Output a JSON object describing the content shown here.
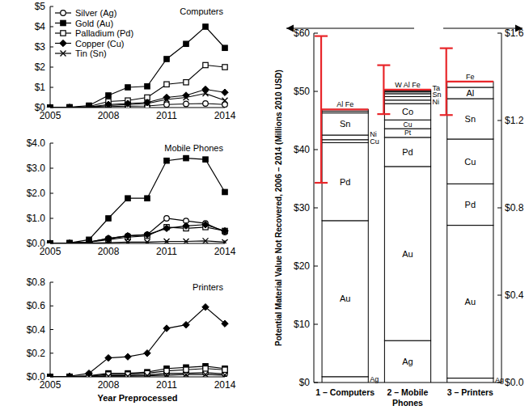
{
  "chart_data": [
    {
      "type": "line",
      "title": "Computers",
      "x": [
        2005,
        2006,
        2007,
        2008,
        2009,
        2010,
        2011,
        2012,
        2013,
        2014
      ],
      "xlim": [
        2005,
        2014
      ],
      "xticks": [
        2005,
        2008,
        2011,
        2014
      ],
      "ylim": [
        0,
        5
      ],
      "yticks": [
        {
          "value": 0,
          "label": "$0"
        },
        {
          "value": 1,
          "label": "$1"
        },
        {
          "value": 2,
          "label": "$2"
        },
        {
          "value": 3,
          "label": "$3"
        },
        {
          "value": 4,
          "label": "$4"
        },
        {
          "value": 5,
          "label": "$5"
        }
      ],
      "legend": "upper left",
      "series": [
        {
          "name": "Silver (Ag)",
          "color": "#000000",
          "marker": "circle_open",
          "values": [
            0,
            0,
            0.01,
            0.05,
            0.07,
            0.08,
            0.15,
            0.18,
            0.2,
            0.15
          ]
        },
        {
          "name": "Gold (Au)",
          "color": "#000000",
          "marker": "square",
          "values": [
            0,
            0.02,
            0.1,
            0.6,
            1.0,
            1.05,
            2.4,
            3.15,
            4.0,
            2.95
          ]
        },
        {
          "name": "Palladium (Pd)",
          "color": "#000000",
          "marker": "square_open",
          "values": [
            0,
            0.01,
            0.05,
            0.3,
            0.35,
            0.5,
            1.15,
            1.25,
            2.1,
            2.0
          ]
        },
        {
          "name": "Copper (Cu)",
          "color": "#000000",
          "marker": "diamond",
          "values": [
            0,
            0.01,
            0.03,
            0.15,
            0.2,
            0.25,
            0.5,
            0.6,
            0.9,
            0.75
          ]
        },
        {
          "name": "Tin (Sn)",
          "color": "#000000",
          "marker": "x",
          "values": [
            0,
            0,
            0.02,
            0.1,
            0.15,
            0.2,
            0.4,
            0.5,
            0.7,
            0.35
          ]
        }
      ]
    },
    {
      "type": "line",
      "title": "Mobile Phones",
      "x": [
        2005,
        2006,
        2007,
        2008,
        2009,
        2010,
        2011,
        2012,
        2013,
        2014
      ],
      "xlim": [
        2005,
        2014
      ],
      "xticks": [
        2005,
        2008,
        2011,
        2014
      ],
      "ylim": [
        0,
        4
      ],
      "yticks": [
        {
          "value": 0,
          "label": "$0.0"
        },
        {
          "value": 1,
          "label": "$1.0"
        },
        {
          "value": 2,
          "label": "$2.0"
        },
        {
          "value": 3,
          "label": "$3.0"
        },
        {
          "value": 4,
          "label": "$4.0"
        }
      ],
      "series": [
        {
          "name": "Silver (Ag)",
          "color": "#000000",
          "marker": "circle_open",
          "values": [
            0,
            0.01,
            0.05,
            0.2,
            0.3,
            0.35,
            1.0,
            0.9,
            0.8,
            0.45
          ]
        },
        {
          "name": "Gold (Au)",
          "color": "#000000",
          "marker": "square",
          "values": [
            0,
            0.02,
            0.15,
            1.0,
            1.8,
            1.8,
            3.3,
            3.4,
            3.35,
            2.05
          ]
        },
        {
          "name": "Palladium (Pd)",
          "color": "#000000",
          "marker": "square_open",
          "values": [
            0,
            0.01,
            0.05,
            0.15,
            0.25,
            0.3,
            0.65,
            0.6,
            0.65,
            0.5
          ]
        },
        {
          "name": "Copper (Cu)",
          "color": "#000000",
          "marker": "diamond",
          "values": [
            0,
            0.01,
            0.05,
            0.2,
            0.3,
            0.35,
            0.6,
            0.7,
            0.75,
            0.5
          ]
        },
        {
          "name": "Tin (Sn)",
          "color": "#000000",
          "marker": "x",
          "values": [
            0,
            0,
            0.01,
            0.03,
            0.05,
            0.05,
            0.08,
            0.08,
            0.1,
            0.05
          ]
        }
      ]
    },
    {
      "type": "line",
      "title": "Printers",
      "xlabel": "Year Preprocessed",
      "x": [
        2005,
        2006,
        2007,
        2008,
        2009,
        2010,
        2011,
        2012,
        2013,
        2014
      ],
      "xlim": [
        2005,
        2014
      ],
      "xticks": [
        2005,
        2008,
        2011,
        2014
      ],
      "ylim": [
        0,
        0.8
      ],
      "yticks": [
        {
          "value": 0,
          "label": "$0.0"
        },
        {
          "value": 0.2,
          "label": "$0.2"
        },
        {
          "value": 0.4,
          "label": "$0.4"
        },
        {
          "value": 0.6,
          "label": "$0.6"
        },
        {
          "value": 0.8,
          "label": "$0.8"
        }
      ],
      "series": [
        {
          "name": "Silver (Ag)",
          "color": "#000000",
          "marker": "circle_open",
          "values": [
            0,
            0,
            0.002,
            0.01,
            0.01,
            0.015,
            0.03,
            0.03,
            0.035,
            0.025
          ]
        },
        {
          "name": "Gold (Au)",
          "color": "#000000",
          "marker": "square",
          "values": [
            0,
            0.002,
            0.01,
            0.03,
            0.03,
            0.04,
            0.07,
            0.08,
            0.09,
            0.07
          ]
        },
        {
          "name": "Palladium (Pd)",
          "color": "#000000",
          "marker": "square_open",
          "values": [
            0,
            0,
            0.005,
            0.02,
            0.02,
            0.03,
            0.05,
            0.06,
            0.07,
            0.06
          ]
        },
        {
          "name": "Copper (Cu)",
          "color": "#000000",
          "marker": "diamond",
          "values": [
            0,
            0.005,
            0.03,
            0.16,
            0.17,
            0.2,
            0.41,
            0.44,
            0.59,
            0.45
          ]
        },
        {
          "name": "Tin (Sn)",
          "color": "#000000",
          "marker": "x",
          "values": [
            0,
            0,
            0,
            0.005,
            0.005,
            0.01,
            0.015,
            0.02,
            0.02,
            0.015
          ]
        }
      ]
    },
    {
      "type": "bar",
      "stacked": true,
      "color": "#ffffff",
      "ylabel": "Potential Material Value Not Recovered, 2006 – 2014 (Millions 2010 USD)",
      "categories": [
        "1 – Computers",
        "2 – Mobile Phones",
        "3 – Printers"
      ],
      "ylim": [
        0,
        60
      ],
      "yticks": [
        {
          "value": 0,
          "label": "$0"
        },
        {
          "value": 10,
          "label": "$10"
        },
        {
          "value": 20,
          "label": "$20"
        },
        {
          "value": 30,
          "label": "$30"
        },
        {
          "value": 40,
          "label": "$40"
        },
        {
          "value": 50,
          "label": "$50"
        },
        {
          "value": 60,
          "label": "$60"
        }
      ],
      "y2lim": [
        0,
        1.6
      ],
      "y2ticks": [
        {
          "value": 0,
          "label": "$0.0"
        },
        {
          "value": 0.4,
          "label": "$0.4"
        },
        {
          "value": 0.8,
          "label": "$0.8"
        },
        {
          "value": 1.2,
          "label": "$1.2"
        },
        {
          "value": 1.6,
          "label": "$1.6"
        }
      ],
      "errors": [
        12.6,
        4.2,
        0.153
      ],
      "series": [
        {
          "name": "Ag",
          "values": [
            1.0,
            7.2,
            null
          ]
        },
        {
          "name": "Au",
          "values": [
            26.8,
            29.9,
            null
          ]
        },
        {
          "name": "Pd",
          "values": [
            13.4,
            5.0,
            null
          ]
        },
        {
          "name": "Pt",
          "values": [
            null,
            1.5,
            null
          ]
        },
        {
          "name": "Cu",
          "values": [
            0.5,
            1.5,
            null
          ]
        },
        {
          "name": "Co",
          "values": [
            null,
            2.8,
            null
          ]
        },
        {
          "name": "Ni",
          "values": [
            0.8,
            0.6,
            null
          ]
        },
        {
          "name": "Sn",
          "values": [
            3.8,
            0.6,
            null
          ]
        },
        {
          "name": "Ta",
          "values": [
            null,
            0.5,
            null
          ]
        },
        {
          "name": "W",
          "values": [
            null,
            0.3,
            null
          ]
        },
        {
          "name": "Al",
          "values": [
            0.3,
            0.2,
            null
          ]
        },
        {
          "name": "Fe",
          "values": [
            0.3,
            0.2,
            null
          ]
        },
        {
          "name": "Ag",
          "axis": "y2",
          "values": [
            null,
            null,
            0.02
          ]
        },
        {
          "name": "Au",
          "axis": "y2",
          "values": [
            null,
            null,
            0.7
          ]
        },
        {
          "name": "Pd",
          "axis": "y2",
          "values": [
            null,
            null,
            0.19
          ]
        },
        {
          "name": "Cu",
          "axis": "y2",
          "values": [
            null,
            null,
            0.205
          ]
        },
        {
          "name": "Sn",
          "axis": "y2",
          "values": [
            null,
            null,
            0.185
          ]
        },
        {
          "name": "Al",
          "axis": "y2",
          "values": [
            null,
            null,
            0.052
          ]
        },
        {
          "name": "Fe",
          "axis": "y2",
          "values": [
            null,
            null,
            0.026
          ]
        }
      ]
    }
  ]
}
